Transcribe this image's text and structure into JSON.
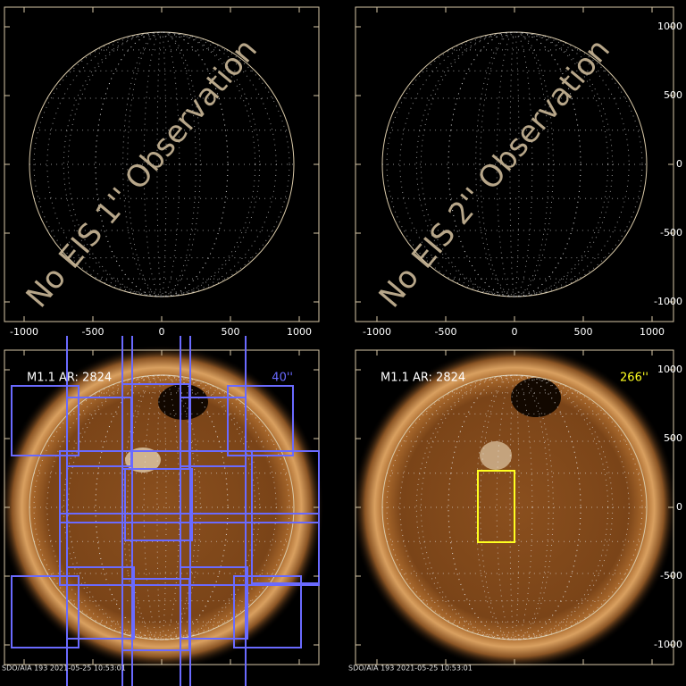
{
  "x_axis": {
    "ticks": [
      -1000,
      -500,
      0,
      500,
      1000
    ]
  },
  "y_axis": {
    "ticks": [
      1000,
      500,
      0,
      -500,
      -1000
    ]
  },
  "panels": [
    {
      "annotation": "No EIS 1'' Observation"
    },
    {
      "annotation": "No EIS 2'' Observation"
    },
    {
      "title": "M1.1 AR: 2824",
      "size": "40''",
      "footer": "SDO/AIA 193  2021-05-25 10:53:01"
    },
    {
      "title": "M1.1 AR: 2824",
      "size": "266''",
      "footer": "SDO/AIA 193  2021-05-25 10:53:01"
    }
  ]
}
